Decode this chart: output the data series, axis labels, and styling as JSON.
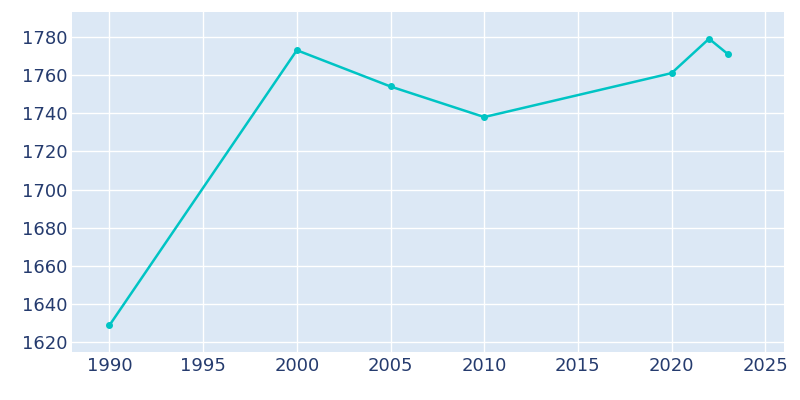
{
  "years": [
    1990,
    2000,
    2005,
    2010,
    2020,
    2022,
    2023
  ],
  "population": [
    1629,
    1773,
    1754,
    1738,
    1761,
    1779,
    1771
  ],
  "line_color": "#00C4C4",
  "marker": "o",
  "marker_size": 4,
  "line_width": 1.8,
  "fig_bg_color": "#ffffff",
  "plot_bg_color": "#dce8f5",
  "grid_color": "#ffffff",
  "xlim": [
    1988,
    2026
  ],
  "ylim": [
    1615,
    1793
  ],
  "xticks": [
    1990,
    1995,
    2000,
    2005,
    2010,
    2015,
    2020,
    2025
  ],
  "yticks": [
    1620,
    1640,
    1660,
    1680,
    1700,
    1720,
    1740,
    1760,
    1780
  ],
  "tick_label_color": "#253B6E",
  "tick_fontsize": 13
}
